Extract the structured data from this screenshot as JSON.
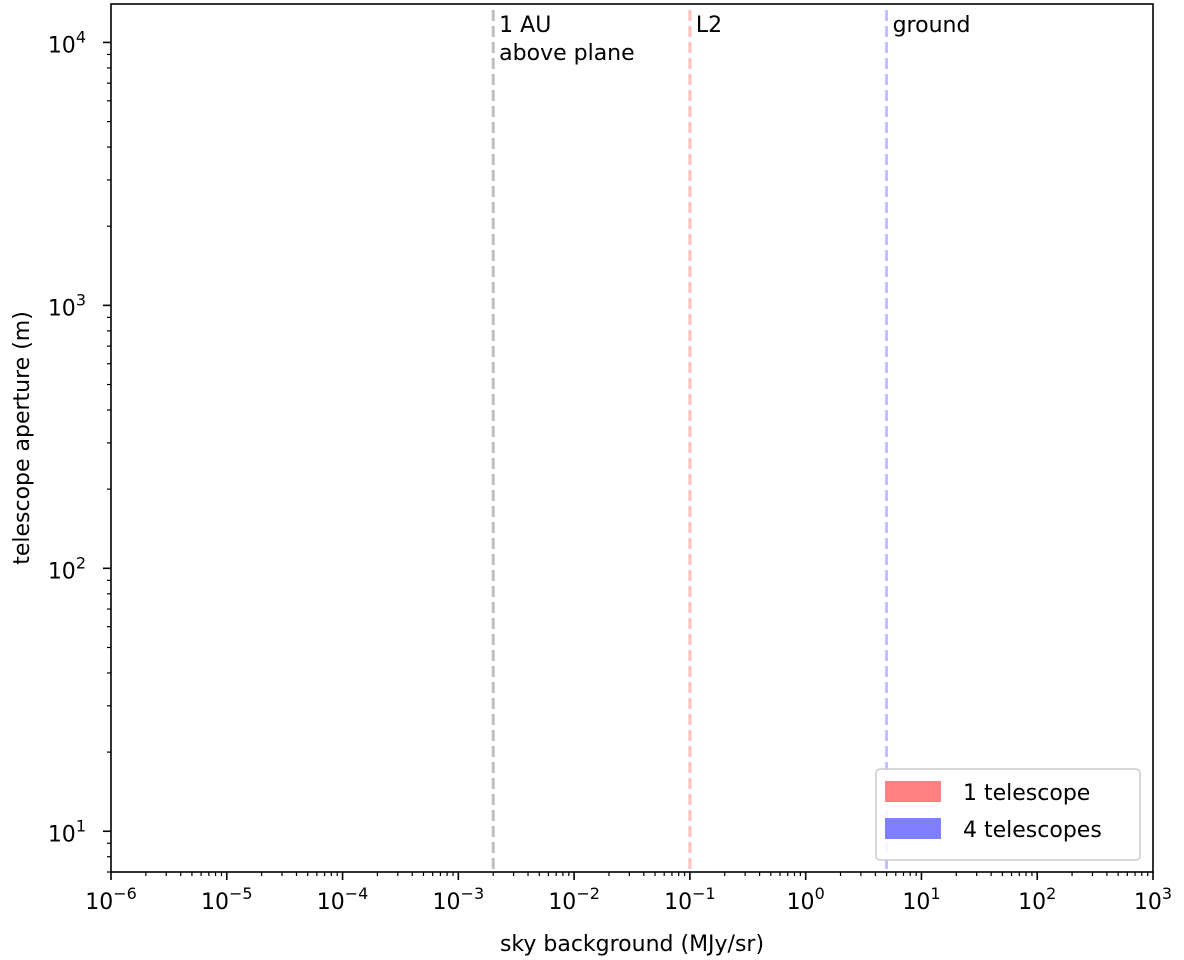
{
  "chart_data": {
    "type": "line",
    "xlabel": "sky background (MJy/sr)",
    "ylabel": "telescope aperture (m)",
    "xscale": "log",
    "yscale": "log",
    "xlim": [
      1e-06,
      1000
    ],
    "ylim": [
      7,
      14000
    ],
    "x_ticks": [
      {
        "value": 1e-06,
        "base": "10",
        "exp": "−6"
      },
      {
        "value": 1e-05,
        "base": "10",
        "exp": "−5"
      },
      {
        "value": 0.0001,
        "base": "10",
        "exp": "−4"
      },
      {
        "value": 0.001,
        "base": "10",
        "exp": "−3"
      },
      {
        "value": 0.01,
        "base": "10",
        "exp": "−2"
      },
      {
        "value": 0.1,
        "base": "10",
        "exp": "−1"
      },
      {
        "value": 1,
        "base": "10",
        "exp": "0"
      },
      {
        "value": 10,
        "base": "10",
        "exp": "1"
      },
      {
        "value": 100,
        "base": "10",
        "exp": "2"
      },
      {
        "value": 1000,
        "base": "10",
        "exp": "3"
      }
    ],
    "y_ticks": [
      {
        "value": 10,
        "base": "10",
        "exp": "1"
      },
      {
        "value": 100,
        "base": "10",
        "exp": "2"
      },
      {
        "value": 1000,
        "base": "10",
        "exp": "3"
      },
      {
        "value": 10000,
        "base": "10",
        "exp": "4"
      }
    ],
    "vertical_lines": [
      {
        "x": 0.002,
        "color": "#bfbfbf",
        "label_lines": [
          "1 AU",
          "above plane"
        ]
      },
      {
        "x": 0.1,
        "color": "#ffc0c0",
        "label_lines": [
          "L2"
        ]
      },
      {
        "x": 5,
        "color": "#c0c0ff",
        "label_lines": [
          "ground"
        ]
      }
    ],
    "legend": {
      "placement": "lower-right",
      "entries": [
        {
          "name": "1 telescope",
          "color": "#ff8080"
        },
        {
          "name": "4 telescopes",
          "color": "#8080ff"
        }
      ]
    },
    "grid": false
  }
}
